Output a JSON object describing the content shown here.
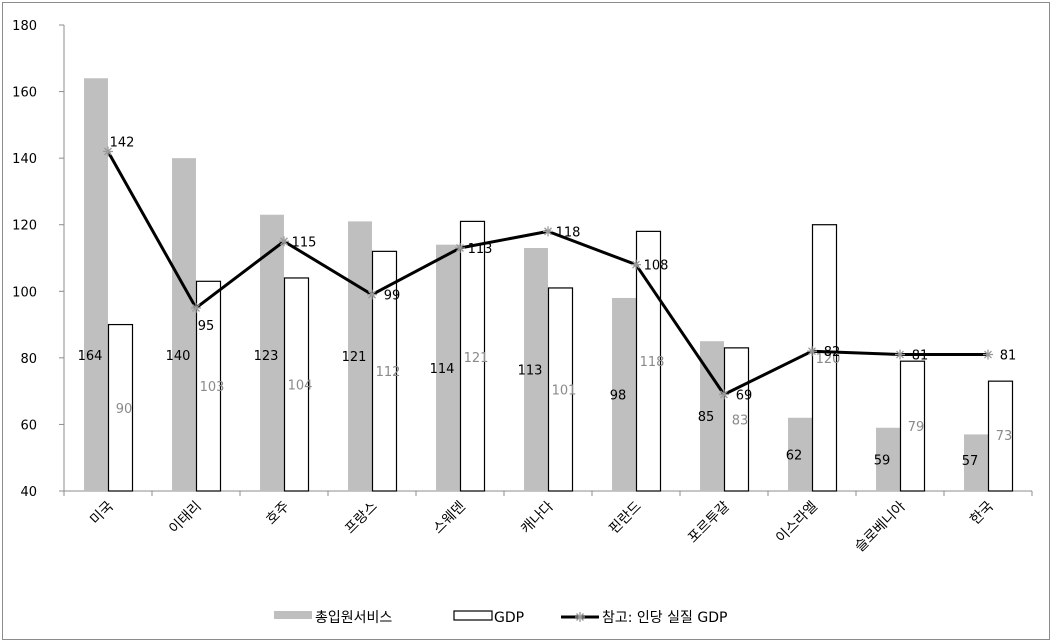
{
  "chart_data": {
    "type": "bar",
    "categories": [
      "미국",
      "이태리",
      "호주",
      "프랑스",
      "스웨덴",
      "캐나다",
      "핀란드",
      "포르투갈",
      "이스라엘",
      "슬로베니아",
      "한국"
    ],
    "series": [
      {
        "name": "총입원서비스",
        "kind": "bar",
        "color": "#bfbfbf",
        "values": [
          164,
          140,
          123,
          121,
          114,
          113,
          98,
          85,
          62,
          59,
          57
        ]
      },
      {
        "name": "GDP",
        "kind": "bar",
        "color": "#ffffff",
        "stroke": "#000000",
        "values": [
          90,
          103,
          104,
          112,
          121,
          101,
          118,
          83,
          120,
          79,
          73
        ]
      },
      {
        "name": "참고: 인당 실질 GDP",
        "kind": "line",
        "color": "#000000",
        "marker": "asterisk",
        "values": [
          142,
          95,
          115,
          99,
          113,
          118,
          108,
          69,
          82,
          81,
          81
        ]
      }
    ],
    "ylim": [
      40,
      180
    ],
    "yticks": [
      40,
      60,
      80,
      100,
      120,
      140,
      160,
      180
    ],
    "grid": false,
    "legend": "bottom",
    "title": "",
    "xlabel": "",
    "ylabel": ""
  }
}
